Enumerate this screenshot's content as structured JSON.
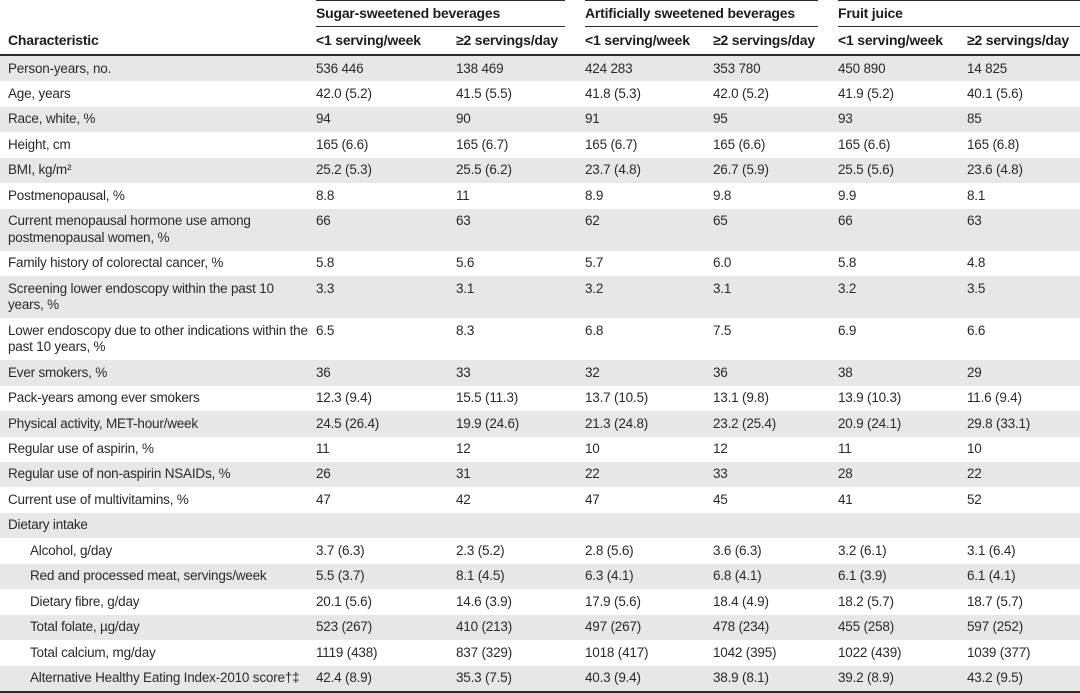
{
  "table": {
    "characteristic_header": "Characteristic",
    "groups": [
      {
        "label": "Sugar-sweetened beverages"
      },
      {
        "label": "Artificially sweetened beverages"
      },
      {
        "label": "Fruit juice"
      }
    ],
    "sub_headers": [
      "<1 serving/week",
      "≥2 servings/day",
      "<1 serving/week",
      "≥2 servings/day",
      "<1 serving/week",
      "≥2 servings/day"
    ],
    "rows": [
      {
        "label": "Person-years, no.",
        "indent": false,
        "values": [
          "536 446",
          "138 469",
          "424 283",
          "353 780",
          "450 890",
          "14 825"
        ]
      },
      {
        "label": "Age, years",
        "indent": false,
        "values": [
          "42.0 (5.2)",
          "41.5 (5.5)",
          "41.8 (5.3)",
          "42.0 (5.2)",
          "41.9 (5.2)",
          "40.1 (5.6)"
        ]
      },
      {
        "label": "Race, white, %",
        "indent": false,
        "values": [
          "94",
          "90",
          "91",
          "95",
          "93",
          "85"
        ]
      },
      {
        "label": "Height, cm",
        "indent": false,
        "values": [
          "165 (6.6)",
          "165 (6.7)",
          "165 (6.7)",
          "165 (6.6)",
          "165 (6.6)",
          "165 (6.8)"
        ]
      },
      {
        "label": "BMI, kg/m²",
        "indent": false,
        "values": [
          "25.2 (5.3)",
          "25.5 (6.2)",
          "23.7 (4.8)",
          "26.7 (5.9)",
          "25.5 (5.6)",
          "23.6 (4.8)"
        ]
      },
      {
        "label": "Postmenopausal, %",
        "indent": false,
        "values": [
          "8.8",
          "11",
          "8.9",
          "9.8",
          "9.9",
          "8.1"
        ]
      },
      {
        "label": "Current menopausal hormone use among postmenopausal women, %",
        "indent": false,
        "values": [
          "66",
          "63",
          "62",
          "65",
          "66",
          "63"
        ]
      },
      {
        "label": "Family history of colorectal cancer, %",
        "indent": false,
        "values": [
          "5.8",
          "5.6",
          "5.7",
          "6.0",
          "5.8",
          "4.8"
        ]
      },
      {
        "label": "Screening lower endoscopy within the past 10 years, %",
        "indent": false,
        "values": [
          "3.3",
          "3.1",
          "3.2",
          "3.1",
          "3.2",
          "3.5"
        ]
      },
      {
        "label": "Lower endoscopy due to other indications within the past 10 years, %",
        "indent": false,
        "values": [
          "6.5",
          "8.3",
          "6.8",
          "7.5",
          "6.9",
          "6.6"
        ]
      },
      {
        "label": "Ever smokers, %",
        "indent": false,
        "values": [
          "36",
          "33",
          "32",
          "36",
          "38",
          "29"
        ]
      },
      {
        "label": "Pack-years among ever smokers",
        "indent": false,
        "values": [
          "12.3 (9.4)",
          "15.5 (11.3)",
          "13.7 (10.5)",
          "13.1 (9.8)",
          "13.9 (10.3)",
          "11.6 (9.4)"
        ]
      },
      {
        "label": "Physical activity, MET-hour/week",
        "indent": false,
        "values": [
          "24.5 (26.4)",
          "19.9 (24.6)",
          "21.3 (24.8)",
          "23.2 (25.4)",
          "20.9 (24.1)",
          "29.8 (33.1)"
        ]
      },
      {
        "label": "Regular use of aspirin, %",
        "indent": false,
        "values": [
          "11",
          "12",
          "10",
          "12",
          "11",
          "10"
        ]
      },
      {
        "label": "Regular use of non-aspirin NSAIDs, %",
        "indent": false,
        "values": [
          "26",
          "31",
          "22",
          "33",
          "28",
          "22"
        ]
      },
      {
        "label": "Current use of multivitamins, %",
        "indent": false,
        "values": [
          "47",
          "42",
          "47",
          "45",
          "41",
          "52"
        ]
      },
      {
        "label": "Dietary intake",
        "indent": false,
        "values": [
          "",
          "",
          "",
          "",
          "",
          ""
        ]
      },
      {
        "label": "Alcohol, g/day",
        "indent": true,
        "values": [
          "3.7 (6.3)",
          "2.3 (5.2)",
          "2.8 (5.6)",
          "3.6 (6.3)",
          "3.2 (6.1)",
          "3.1 (6.4)"
        ]
      },
      {
        "label": "Red and processed meat, servings/week",
        "indent": true,
        "values": [
          "5.5 (3.7)",
          "8.1 (4.5)",
          "6.3 (4.1)",
          "6.8 (4.1)",
          "6.1 (3.9)",
          "6.1 (4.1)"
        ]
      },
      {
        "label": "Dietary fibre, g/day",
        "indent": true,
        "values": [
          "20.1 (5.6)",
          "14.6 (3.9)",
          "17.9 (5.6)",
          "18.4 (4.9)",
          "18.2 (5.7)",
          "18.7 (5.7)"
        ]
      },
      {
        "label": "Total folate, µg/day",
        "indent": true,
        "values": [
          "523 (267)",
          "410 (213)",
          "497 (267)",
          "478 (234)",
          "455 (258)",
          "597 (252)"
        ]
      },
      {
        "label": "Total calcium, mg/day",
        "indent": true,
        "values": [
          "1119 (438)",
          "837 (329)",
          "1018 (417)",
          "1042 (395)",
          "1022 (439)",
          "1039 (377)"
        ]
      },
      {
        "label": "Alternative Healthy Eating Index-2010 score†‡",
        "indent": true,
        "values": [
          "42.4 (8.9)",
          "35.3 (7.5)",
          "40.3 (9.4)",
          "38.9 (8.1)",
          "39.2 (8.9)",
          "43.2 (9.5)"
        ]
      }
    ],
    "colors": {
      "shaded_row": "#e7e7e8",
      "rule": "#2b2b2b",
      "text": "#2a2a2a"
    }
  }
}
